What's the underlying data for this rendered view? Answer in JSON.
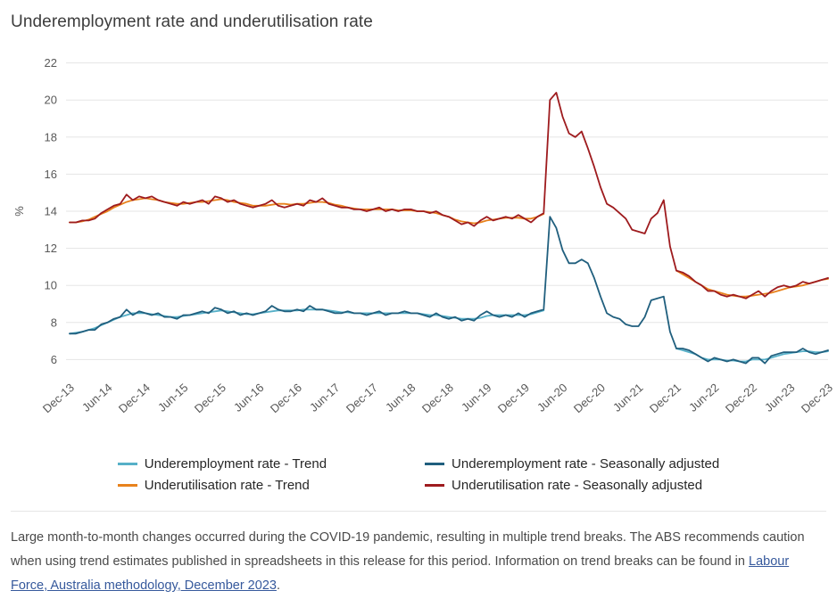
{
  "page": {
    "title": "Underemployment rate and underutilisation rate"
  },
  "chart_data": {
    "type": "line",
    "title": "Underemployment rate and underutilisation rate",
    "xlabel": "",
    "ylabel": "%",
    "yticks": [
      6,
      8,
      10,
      12,
      14,
      16,
      18,
      20,
      22
    ],
    "ylim": [
      5.3,
      22.7
    ],
    "grid": "horizontal",
    "legend_position": "bottom",
    "x_unit": "month",
    "x_start": "Dec-13",
    "x_end": "Dec-23",
    "x_tick_every": 6,
    "x_tick_labels": [
      "Dec-13",
      "Jun-14",
      "Dec-14",
      "Jun-15",
      "Dec-15",
      "Jun-16",
      "Dec-16",
      "Jun-17",
      "Dec-17",
      "Jun-18",
      "Dec-18",
      "Jun-19",
      "Dec-19",
      "Jun-20",
      "Dec-20",
      "Jun-21",
      "Dec-21",
      "Jun-22",
      "Dec-22",
      "Jun-23",
      "Dec-23"
    ],
    "series": [
      {
        "name": "Underemployment rate - Trend",
        "color": "#56b0c8",
        "values": [
          7.4,
          7.45,
          7.5,
          7.6,
          7.7,
          7.85,
          8.0,
          8.15,
          8.3,
          8.4,
          8.5,
          8.5,
          8.5,
          8.45,
          8.4,
          8.35,
          8.3,
          8.3,
          8.35,
          8.4,
          8.45,
          8.5,
          8.55,
          8.6,
          8.65,
          8.6,
          8.55,
          8.5,
          8.45,
          8.45,
          8.5,
          8.55,
          8.6,
          8.65,
          8.65,
          8.65,
          8.65,
          8.7,
          8.7,
          8.7,
          8.7,
          8.65,
          8.6,
          8.55,
          8.55,
          8.5,
          8.5,
          8.5,
          8.5,
          8.5,
          8.5,
          8.5,
          8.5,
          8.5,
          8.5,
          8.5,
          8.45,
          8.4,
          8.4,
          8.35,
          8.3,
          8.25,
          8.2,
          8.2,
          8.2,
          8.25,
          8.35,
          8.4,
          8.4,
          8.4,
          8.4,
          8.4,
          8.4,
          8.45,
          8.55,
          8.65,
          null,
          null,
          null,
          null,
          null,
          null,
          null,
          null,
          null,
          null,
          null,
          null,
          null,
          null,
          null,
          null,
          null,
          null,
          null,
          null,
          6.6,
          6.5,
          6.4,
          6.3,
          6.1,
          6.0,
          6.0,
          6.0,
          5.95,
          5.95,
          5.9,
          5.9,
          6.0,
          6.0,
          6.0,
          6.1,
          6.2,
          6.3,
          6.35,
          6.4,
          6.45,
          6.45,
          6.4,
          6.4,
          6.45
        ]
      },
      {
        "name": "Underutilisation rate - Trend",
        "color": "#e8821c",
        "values": [
          13.4,
          13.4,
          13.45,
          13.55,
          13.7,
          13.85,
          14.0,
          14.2,
          14.35,
          14.5,
          14.6,
          14.65,
          14.7,
          14.65,
          14.6,
          14.5,
          14.45,
          14.4,
          14.4,
          14.45,
          14.5,
          14.5,
          14.55,
          14.6,
          14.65,
          14.6,
          14.5,
          14.45,
          14.4,
          14.3,
          14.3,
          14.3,
          14.35,
          14.4,
          14.4,
          14.35,
          14.4,
          14.4,
          14.45,
          14.5,
          14.5,
          14.45,
          14.35,
          14.3,
          14.2,
          14.15,
          14.1,
          14.1,
          14.1,
          14.1,
          14.1,
          14.1,
          14.05,
          14.05,
          14.05,
          14.0,
          14.0,
          13.95,
          13.9,
          13.8,
          13.7,
          13.55,
          13.45,
          13.4,
          13.35,
          13.4,
          13.5,
          13.55,
          13.6,
          13.65,
          13.65,
          13.65,
          13.6,
          13.6,
          13.7,
          13.85,
          null,
          null,
          null,
          null,
          null,
          null,
          null,
          null,
          null,
          null,
          null,
          null,
          null,
          null,
          null,
          null,
          null,
          null,
          null,
          null,
          10.8,
          10.6,
          10.4,
          10.2,
          10.0,
          9.8,
          9.7,
          9.6,
          9.5,
          9.45,
          9.4,
          9.4,
          9.45,
          9.5,
          9.55,
          9.6,
          9.7,
          9.8,
          9.9,
          9.95,
          10.0,
          10.1,
          10.2,
          10.3,
          10.35
        ]
      },
      {
        "name": "Underemployment rate - Seasonally adjusted",
        "color": "#205f7e",
        "values": [
          7.4,
          7.4,
          7.5,
          7.6,
          7.6,
          7.9,
          8.0,
          8.2,
          8.3,
          8.7,
          8.4,
          8.6,
          8.5,
          8.4,
          8.5,
          8.3,
          8.3,
          8.2,
          8.4,
          8.4,
          8.5,
          8.6,
          8.5,
          8.8,
          8.7,
          8.5,
          8.6,
          8.4,
          8.5,
          8.4,
          8.5,
          8.6,
          8.9,
          8.7,
          8.6,
          8.6,
          8.7,
          8.6,
          8.9,
          8.7,
          8.7,
          8.6,
          8.5,
          8.5,
          8.6,
          8.5,
          8.5,
          8.4,
          8.5,
          8.6,
          8.4,
          8.5,
          8.5,
          8.6,
          8.5,
          8.5,
          8.4,
          8.3,
          8.5,
          8.3,
          8.2,
          8.3,
          8.1,
          8.2,
          8.1,
          8.4,
          8.6,
          8.4,
          8.3,
          8.4,
          8.3,
          8.5,
          8.3,
          8.5,
          8.6,
          8.7,
          13.7,
          13.1,
          11.9,
          11.2,
          11.2,
          11.4,
          11.2,
          10.4,
          9.4,
          8.5,
          8.3,
          8.2,
          7.9,
          7.8,
          7.8,
          8.3,
          9.2,
          9.3,
          9.4,
          7.5,
          6.6,
          6.6,
          6.5,
          6.3,
          6.1,
          5.9,
          6.1,
          6.0,
          5.9,
          6.0,
          5.9,
          5.8,
          6.1,
          6.1,
          5.8,
          6.2,
          6.3,
          6.4,
          6.4,
          6.4,
          6.6,
          6.4,
          6.3,
          6.4,
          6.5
        ]
      },
      {
        "name": "Underutilisation rate - Seasonally adjusted",
        "color": "#9e1b1e",
        "values": [
          13.4,
          13.4,
          13.5,
          13.5,
          13.6,
          13.9,
          14.1,
          14.3,
          14.4,
          14.9,
          14.6,
          14.8,
          14.7,
          14.8,
          14.6,
          14.5,
          14.4,
          14.3,
          14.5,
          14.4,
          14.5,
          14.6,
          14.4,
          14.8,
          14.7,
          14.5,
          14.6,
          14.4,
          14.3,
          14.2,
          14.3,
          14.4,
          14.6,
          14.3,
          14.2,
          14.3,
          14.4,
          14.3,
          14.6,
          14.5,
          14.7,
          14.4,
          14.3,
          14.2,
          14.2,
          14.1,
          14.1,
          14.0,
          14.1,
          14.2,
          14.0,
          14.1,
          14.0,
          14.1,
          14.1,
          14.0,
          14.0,
          13.9,
          14.0,
          13.8,
          13.7,
          13.5,
          13.3,
          13.4,
          13.2,
          13.5,
          13.7,
          13.5,
          13.6,
          13.7,
          13.6,
          13.8,
          13.6,
          13.4,
          13.7,
          13.9,
          20.0,
          20.4,
          19.1,
          18.2,
          18.0,
          18.3,
          17.4,
          16.4,
          15.3,
          14.4,
          14.2,
          13.9,
          13.6,
          13.0,
          12.9,
          12.8,
          13.6,
          13.9,
          14.6,
          12.1,
          10.8,
          10.7,
          10.5,
          10.2,
          10.0,
          9.7,
          9.7,
          9.5,
          9.4,
          9.5,
          9.4,
          9.3,
          9.5,
          9.7,
          9.4,
          9.7,
          9.9,
          10.0,
          9.9,
          10.0,
          10.2,
          10.1,
          10.2,
          10.3,
          10.4
        ]
      }
    ]
  },
  "footnote": {
    "text_before": "Large month-to-month changes occurred during the COVID-19 pandemic, resulting in multiple trend breaks. The ABS recommends caution when using trend estimates published in spreadsheets in this release for this period. Information on trend breaks can be found in ",
    "link_text": "Labour Force, Australia methodology, December 2023",
    "text_after": "."
  }
}
